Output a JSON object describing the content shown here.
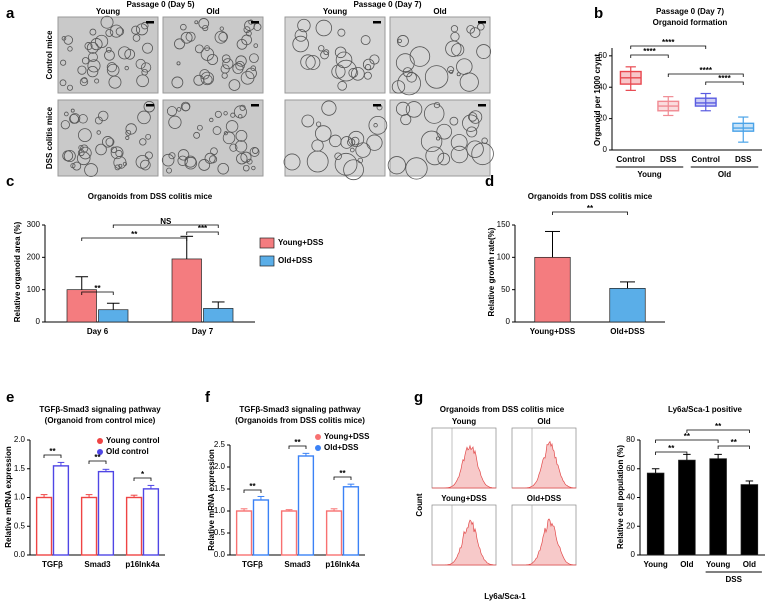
{
  "panel_labels": [
    "a",
    "b",
    "c",
    "d",
    "e",
    "f",
    "g"
  ],
  "panel_a": {
    "columns": [
      {
        "title": "Passage 0 (Day 5)",
        "groups": [
          "Young",
          "Old"
        ]
      },
      {
        "title": "Passage 0 (Day 7)",
        "groups": [
          "Young",
          "Old"
        ]
      }
    ],
    "rows": [
      "Control mice",
      "DSS colitis mice"
    ]
  },
  "panel_g_flow": {
    "title": "Organoids from DSS colitis mice",
    "plots": [
      "Young",
      "Old",
      "Young+DSS",
      "Old+DSS"
    ],
    "y_label": "Count",
    "x_label": "Ly6a/Sca-1"
  },
  "chart_data": [
    {
      "type": "box",
      "title": "Passage 0 (Day 7)",
      "subtitle": "Organoid formation",
      "y_label": "Organoid per 1000 crypt",
      "categories": [
        "Control",
        "DSS",
        "Control",
        "DSS"
      ],
      "groups": [
        "Young",
        "Old"
      ],
      "boxes": [
        {
          "min": 38,
          "q1": 42,
          "median": 46,
          "q3": 50,
          "max": 53,
          "color": "#e8474f"
        },
        {
          "min": 22,
          "q1": 25,
          "median": 28,
          "q3": 31,
          "max": 34,
          "color": "#f08a93"
        },
        {
          "min": 25,
          "q1": 28,
          "median": 30,
          "q3": 33,
          "max": 36,
          "color": "#5a5ce0"
        },
        {
          "min": 5,
          "q1": 12,
          "median": 14,
          "q3": 17,
          "max": 21,
          "color": "#4aa3e8"
        }
      ],
      "ylim": [
        0,
        65
      ],
      "yticks": [
        0,
        20,
        40,
        60
      ],
      "annotations": [
        "****",
        "****",
        "****",
        "****"
      ]
    },
    {
      "type": "bar",
      "title": "Organoids from DSS colitis mice",
      "y_label": "Relative organoid area (%)",
      "categories": [
        "Day 6",
        "Day 7"
      ],
      "series": [
        {
          "name": "Young+DSS",
          "color": "#f47c7f",
          "values": [
            100,
            195
          ],
          "errors": [
            40,
            70
          ]
        },
        {
          "name": "Old+DSS",
          "color": "#5aaee8",
          "values": [
            38,
            42
          ],
          "errors": [
            20,
            20
          ]
        }
      ],
      "ylim": [
        0,
        300
      ],
      "yticks": [
        0,
        100,
        200,
        300
      ],
      "bar_style": "filled",
      "legend": "right",
      "legend_marker": "square",
      "annotations": [
        "**",
        "***",
        "**",
        "NS"
      ]
    },
    {
      "type": "bar",
      "title": "Organoids from DSS colitis mice",
      "y_label": "Relative growth rate(%)",
      "categories": [
        "Young+DSS",
        "Old+DSS"
      ],
      "values": [
        100,
        52
      ],
      "errors": [
        40,
        10
      ],
      "colors": [
        "#f47c7f",
        "#5aaee8"
      ],
      "ylim": [
        0,
        150
      ],
      "yticks": [
        0,
        50,
        100,
        150
      ],
      "bar_style": "filled",
      "annotations": [
        "**"
      ]
    },
    {
      "type": "bar",
      "title": "TGFβ-Smad3 signaling pathway",
      "subtitle": "(Organoid from control mice)",
      "y_label": "Relative mRNA expression",
      "categories": [
        "TGFβ",
        "Smad3",
        "p16Ink4a"
      ],
      "series": [
        {
          "name": "Young control",
          "color": "#ef4444",
          "values": [
            1.0,
            1.0,
            1.0
          ],
          "errors": [
            0.05,
            0.05,
            0.04
          ]
        },
        {
          "name": "Old control",
          "color": "#4f46e5",
          "values": [
            1.55,
            1.45,
            1.15
          ],
          "errors": [
            0.06,
            0.04,
            0.06
          ]
        }
      ],
      "ylim": [
        0,
        2
      ],
      "yticks": [
        {
          "value": 0,
          "label": "0.0"
        },
        0.5,
        {
          "value": 1,
          "label": "1.0"
        },
        1.5,
        {
          "value": 2,
          "label": "2.0"
        }
      ],
      "bar_style": "outline",
      "legend": "top-right",
      "legend_marker": "circle",
      "annotations": [
        "**",
        "**",
        "*"
      ]
    },
    {
      "type": "bar",
      "title": "TGFβ-Smad3 signaling pathway",
      "subtitle": "(Organoids from DSS colitis mice)",
      "y_label": "Relative mRNA expression",
      "categories": [
        "TGFβ",
        "Smad3",
        "p16Ink4a"
      ],
      "series": [
        {
          "name": "Young+DSS",
          "color": "#f87171",
          "values": [
            1.0,
            1.0,
            1.0
          ],
          "errors": [
            0.05,
            0.03,
            0.05
          ]
        },
        {
          "name": "Old+DSS",
          "color": "#3b82f6",
          "values": [
            1.25,
            2.25,
            1.55
          ],
          "errors": [
            0.08,
            0.06,
            0.06
          ]
        }
      ],
      "ylim": [
        0,
        2.5
      ],
      "yticks": [
        {
          "value": 0,
          "label": "0.0"
        },
        0.5,
        {
          "value": 1,
          "label": "1.0"
        },
        1.5,
        {
          "value": 2,
          "label": "2.0"
        },
        2.5
      ],
      "bar_style": "outline",
      "legend": "top-right",
      "legend_marker": "circle",
      "annotations": [
        "**",
        "**",
        "**"
      ]
    },
    {
      "type": "bar",
      "title": "Ly6a/Sca-1 positive",
      "y_label": "Relative cell population (%)",
      "categories": [
        "Young",
        "Old",
        "Young",
        "Old"
      ],
      "groups": [
        null,
        "DSS"
      ],
      "values": [
        57,
        66,
        67,
        49
      ],
      "errors": [
        3,
        4,
        3,
        2.5
      ],
      "color": "#000000",
      "ylim": [
        0,
        80
      ],
      "yticks": [
        0,
        20,
        40,
        60,
        80
      ],
      "bar_style": "filled",
      "annotations": [
        "**",
        "**",
        "**",
        "**"
      ]
    }
  ]
}
